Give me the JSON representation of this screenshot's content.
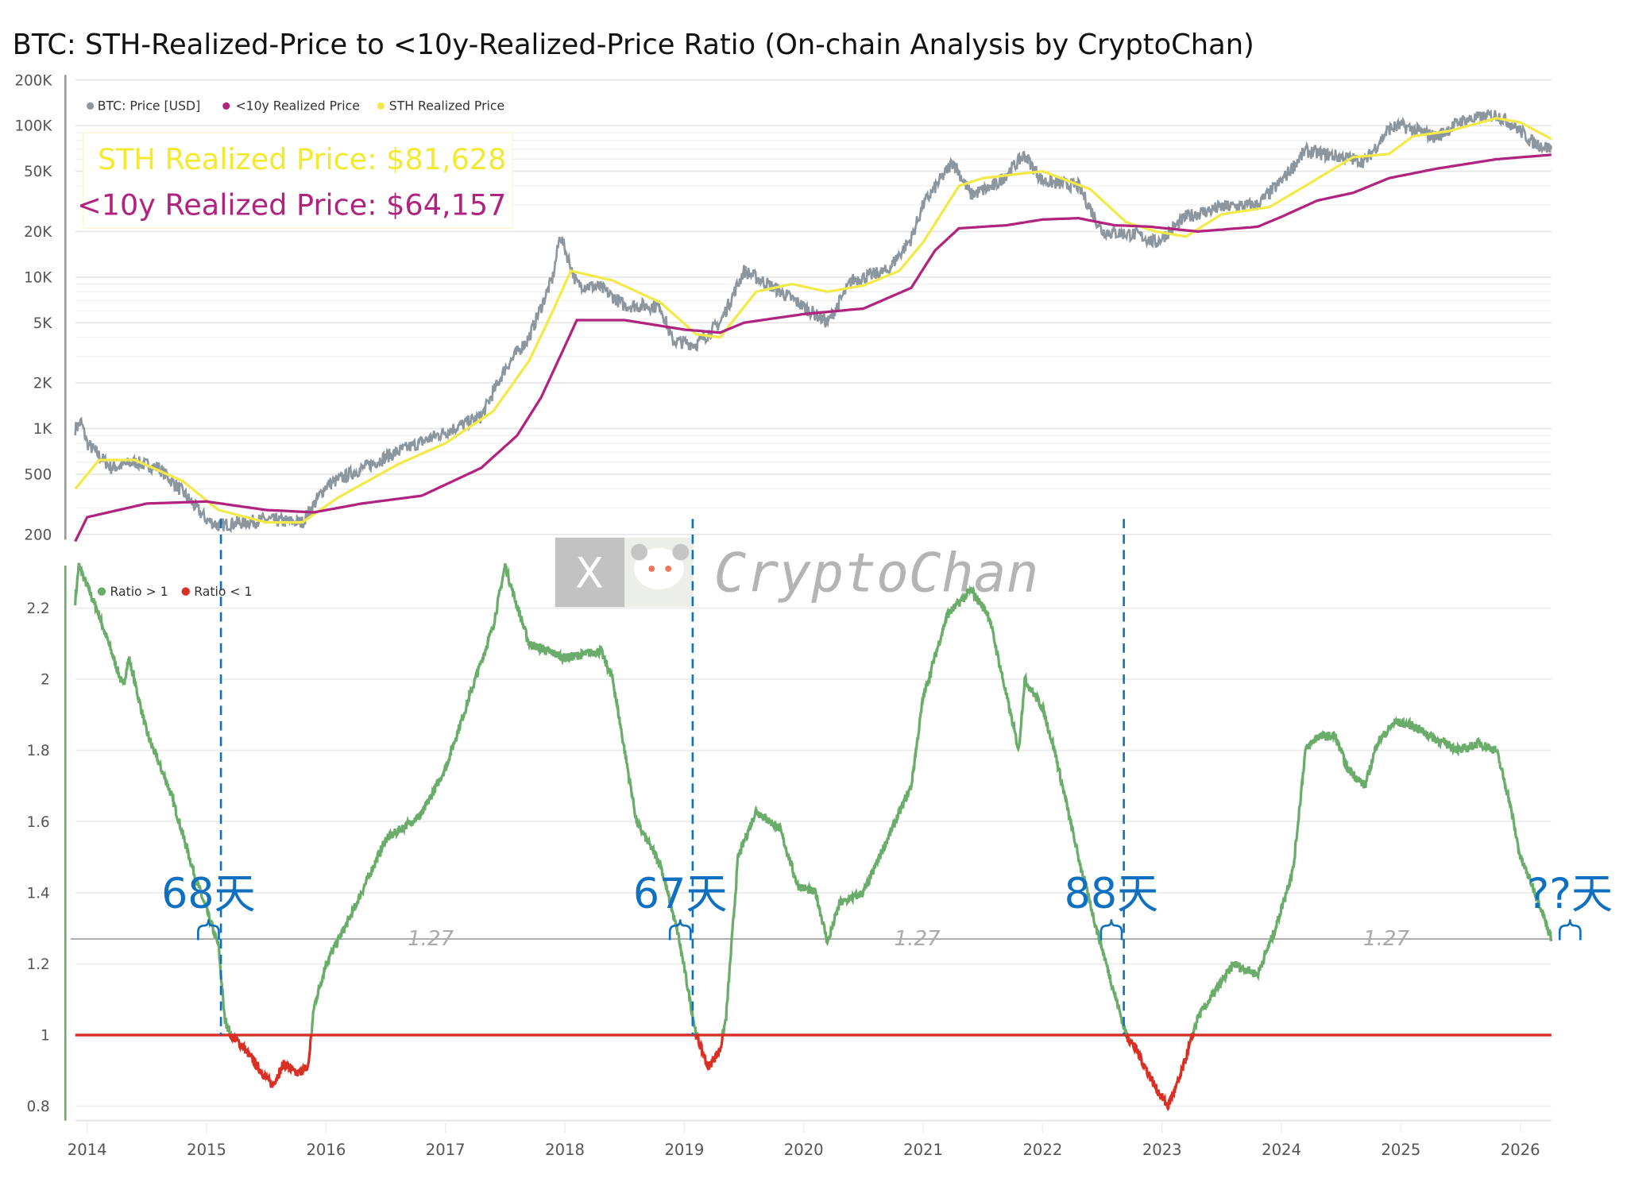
{
  "chart_data": [
    {
      "type": "line",
      "title": "BTC: STH-Realized-Price to <10y-Realized-Price Ratio (On-chain Analysis by CryptoChan)",
      "y_scale": "log",
      "ylim": [
        150,
        200000
      ],
      "y_ticks": [
        "200K",
        "100K",
        "50K",
        "20K",
        "10K",
        "5K",
        "2K",
        "1K",
        "500",
        "200"
      ],
      "y_tick_values": [
        200000,
        100000,
        50000,
        20000,
        10000,
        5000,
        2000,
        1000,
        500,
        200
      ],
      "legend": [
        "BTC: Price [USD]",
        "<10y Realized Price",
        "STH Realized Price"
      ],
      "legend_position": "top-left",
      "annotations": {
        "sth": "STH Realized Price: $81,628",
        "lt10y": "<10y Realized Price: $64,157"
      },
      "colors": {
        "price": "#8c969e",
        "lt10y": "#b0247f",
        "sth": "#f2ea4a"
      },
      "series": [
        {
          "name": "BTC: Price [USD]",
          "points": [
            [
              2013.9,
              1000
            ],
            [
              2013.95,
              1100
            ],
            [
              2014.0,
              800
            ],
            [
              2014.2,
              550
            ],
            [
              2014.4,
              600
            ],
            [
              2014.6,
              550
            ],
            [
              2014.8,
              380
            ],
            [
              2015.0,
              250
            ],
            [
              2015.1,
              230
            ],
            [
              2015.5,
              250
            ],
            [
              2015.8,
              240
            ],
            [
              2016.0,
              420
            ],
            [
              2016.5,
              650
            ],
            [
              2017.0,
              950
            ],
            [
              2017.3,
              1200
            ],
            [
              2017.5,
              2500
            ],
            [
              2017.7,
              4000
            ],
            [
              2017.9,
              10000
            ],
            [
              2017.96,
              19000
            ],
            [
              2018.1,
              9000
            ],
            [
              2018.3,
              8500
            ],
            [
              2018.5,
              6500
            ],
            [
              2018.8,
              6400
            ],
            [
              2018.9,
              3800
            ],
            [
              2019.1,
              3600
            ],
            [
              2019.3,
              5000
            ],
            [
              2019.5,
              11000
            ],
            [
              2019.7,
              9000
            ],
            [
              2019.9,
              7200
            ],
            [
              2020.2,
              5000
            ],
            [
              2020.4,
              9500
            ],
            [
              2020.7,
              11000
            ],
            [
              2020.9,
              18000
            ],
            [
              2021.0,
              30000
            ],
            [
              2021.25,
              58000
            ],
            [
              2021.4,
              35000
            ],
            [
              2021.6,
              40000
            ],
            [
              2021.85,
              64000
            ],
            [
              2022.0,
              43000
            ],
            [
              2022.3,
              40000
            ],
            [
              2022.5,
              20000
            ],
            [
              2022.8,
              19000
            ],
            [
              2022.95,
              16800
            ],
            [
              2023.2,
              25000
            ],
            [
              2023.5,
              29000
            ],
            [
              2023.8,
              30000
            ],
            [
              2024.0,
              43000
            ],
            [
              2024.2,
              68000
            ],
            [
              2024.5,
              62000
            ],
            [
              2024.7,
              58000
            ],
            [
              2024.9,
              95000
            ],
            [
              2025.0,
              100000
            ],
            [
              2025.3,
              84000
            ],
            [
              2025.5,
              107000
            ],
            [
              2025.8,
              118000
            ],
            [
              2025.95,
              100000
            ],
            [
              2026.1,
              78000
            ],
            [
              2026.26,
              70000
            ]
          ]
        },
        {
          "name": "<10y Realized Price",
          "points": [
            [
              2013.9,
              180
            ],
            [
              2014.0,
              260
            ],
            [
              2014.5,
              320
            ],
            [
              2015.0,
              330
            ],
            [
              2015.5,
              290
            ],
            [
              2015.9,
              280
            ],
            [
              2016.3,
              320
            ],
            [
              2016.8,
              360
            ],
            [
              2017.3,
              550
            ],
            [
              2017.6,
              900
            ],
            [
              2017.8,
              1600
            ],
            [
              2018.0,
              3500
            ],
            [
              2018.1,
              5200
            ],
            [
              2018.5,
              5200
            ],
            [
              2019.0,
              4500
            ],
            [
              2019.3,
              4300
            ],
            [
              2019.5,
              5000
            ],
            [
              2020.0,
              5700
            ],
            [
              2020.5,
              6200
            ],
            [
              2020.9,
              8500
            ],
            [
              2021.1,
              15000
            ],
            [
              2021.3,
              21000
            ],
            [
              2021.7,
              22000
            ],
            [
              2022.0,
              24000
            ],
            [
              2022.3,
              24500
            ],
            [
              2022.6,
              22000
            ],
            [
              2022.9,
              21500
            ],
            [
              2023.3,
              20000
            ],
            [
              2023.8,
              21500
            ],
            [
              2024.0,
              25000
            ],
            [
              2024.3,
              32000
            ],
            [
              2024.6,
              36000
            ],
            [
              2024.9,
              45000
            ],
            [
              2025.3,
              52000
            ],
            [
              2025.8,
              60000
            ],
            [
              2026.26,
              64157
            ]
          ]
        },
        {
          "name": "STH Realized Price",
          "points": [
            [
              2013.9,
              400
            ],
            [
              2014.1,
              620
            ],
            [
              2014.4,
              620
            ],
            [
              2014.8,
              450
            ],
            [
              2015.1,
              290
            ],
            [
              2015.5,
              240
            ],
            [
              2015.8,
              240
            ],
            [
              2016.1,
              350
            ],
            [
              2016.6,
              580
            ],
            [
              2017.0,
              800
            ],
            [
              2017.4,
              1300
            ],
            [
              2017.7,
              2800
            ],
            [
              2017.9,
              6000
            ],
            [
              2018.05,
              11000
            ],
            [
              2018.4,
              9500
            ],
            [
              2018.8,
              6800
            ],
            [
              2019.1,
              4200
            ],
            [
              2019.3,
              4000
            ],
            [
              2019.6,
              8000
            ],
            [
              2019.9,
              9000
            ],
            [
              2020.2,
              8000
            ],
            [
              2020.5,
              8800
            ],
            [
              2020.8,
              11000
            ],
            [
              2021.0,
              17000
            ],
            [
              2021.3,
              40000
            ],
            [
              2021.5,
              45000
            ],
            [
              2021.8,
              48000
            ],
            [
              2022.0,
              50000
            ],
            [
              2022.4,
              38000
            ],
            [
              2022.7,
              23000
            ],
            [
              2022.95,
              20000
            ],
            [
              2023.2,
              18500
            ],
            [
              2023.5,
              26000
            ],
            [
              2023.9,
              29000
            ],
            [
              2024.2,
              40000
            ],
            [
              2024.6,
              62000
            ],
            [
              2024.9,
              65000
            ],
            [
              2025.1,
              85000
            ],
            [
              2025.4,
              92000
            ],
            [
              2025.8,
              112000
            ],
            [
              2026.0,
              105000
            ],
            [
              2026.26,
              81628
            ]
          ]
        }
      ]
    },
    {
      "type": "line",
      "ylim": [
        0.75,
        2.35
      ],
      "y_ticks": [
        "2.2",
        "2",
        "1.8",
        "1.6",
        "1.4",
        "1.2",
        "1",
        "0.8"
      ],
      "y_tick_values": [
        2.2,
        2,
        1.8,
        1.6,
        1.4,
        1.2,
        1,
        0.8
      ],
      "x_ticks": [
        "2014",
        "2015",
        "2016",
        "2017",
        "2018",
        "2019",
        "2020",
        "2021",
        "2022",
        "2023",
        "2024",
        "2025",
        "2026"
      ],
      "legend": [
        "Ratio > 1",
        "Ratio < 1"
      ],
      "legend_position": "top-left",
      "colors": {
        "above": "#6aad6a",
        "below": "#d83025",
        "annotation": "#1070c0"
      },
      "reference_lines": [
        {
          "value": 1.27,
          "label": "1.27"
        },
        {
          "value": 1,
          "label": ""
        }
      ],
      "reference_label": "1.27",
      "markers": [
        {
          "year": 2015.12,
          "label": "68天"
        },
        {
          "year": 2019.07,
          "label": "67天"
        },
        {
          "year": 2022.68,
          "label": "88天"
        },
        {
          "year": 2026.26,
          "label": "??天"
        }
      ],
      "series": [
        {
          "name": "Ratio",
          "points": [
            [
              2013.9,
              2.22
            ],
            [
              2013.93,
              2.32
            ],
            [
              2014.1,
              2.18
            ],
            [
              2014.3,
              1.98
            ],
            [
              2014.35,
              2.06
            ],
            [
              2014.5,
              1.85
            ],
            [
              2014.7,
              1.68
            ],
            [
              2014.9,
              1.45
            ],
            [
              2015.1,
              1.25
            ],
            [
              2015.15,
              1.05
            ],
            [
              2015.2,
              1.0
            ],
            [
              2015.3,
              0.97
            ],
            [
              2015.45,
              0.9
            ],
            [
              2015.55,
              0.86
            ],
            [
              2015.65,
              0.92
            ],
            [
              2015.75,
              0.89
            ],
            [
              2015.85,
              0.91
            ],
            [
              2015.9,
              1.08
            ],
            [
              2016.0,
              1.2
            ],
            [
              2016.2,
              1.33
            ],
            [
              2016.5,
              1.55
            ],
            [
              2016.8,
              1.62
            ],
            [
              2017.0,
              1.75
            ],
            [
              2017.2,
              1.95
            ],
            [
              2017.4,
              2.15
            ],
            [
              2017.5,
              2.32
            ],
            [
              2017.55,
              2.26
            ],
            [
              2017.7,
              2.1
            ],
            [
              2018.0,
              2.06
            ],
            [
              2018.3,
              2.08
            ],
            [
              2018.4,
              2.0
            ],
            [
              2018.5,
              1.8
            ],
            [
              2018.6,
              1.6
            ],
            [
              2018.8,
              1.48
            ],
            [
              2018.95,
              1.28
            ],
            [
              2019.1,
              1.0
            ],
            [
              2019.2,
              0.91
            ],
            [
              2019.3,
              0.96
            ],
            [
              2019.35,
              1.05
            ],
            [
              2019.45,
              1.5
            ],
            [
              2019.6,
              1.63
            ],
            [
              2019.8,
              1.58
            ],
            [
              2019.95,
              1.42
            ],
            [
              2020.1,
              1.4
            ],
            [
              2020.2,
              1.26
            ],
            [
              2020.3,
              1.37
            ],
            [
              2020.5,
              1.4
            ],
            [
              2020.7,
              1.55
            ],
            [
              2020.9,
              1.7
            ],
            [
              2021.0,
              1.95
            ],
            [
              2021.2,
              2.18
            ],
            [
              2021.4,
              2.25
            ],
            [
              2021.55,
              2.18
            ],
            [
              2021.7,
              1.95
            ],
            [
              2021.8,
              1.8
            ],
            [
              2021.85,
              2.0
            ],
            [
              2022.0,
              1.92
            ],
            [
              2022.1,
              1.8
            ],
            [
              2022.3,
              1.5
            ],
            [
              2022.45,
              1.3
            ],
            [
              2022.6,
              1.12
            ],
            [
              2022.7,
              1.0
            ],
            [
              2022.8,
              0.95
            ],
            [
              2022.95,
              0.85
            ],
            [
              2023.05,
              0.8
            ],
            [
              2023.15,
              0.88
            ],
            [
              2023.3,
              1.05
            ],
            [
              2023.5,
              1.15
            ],
            [
              2023.6,
              1.2
            ],
            [
              2023.8,
              1.17
            ],
            [
              2023.95,
              1.3
            ],
            [
              2024.1,
              1.47
            ],
            [
              2024.2,
              1.8
            ],
            [
              2024.3,
              1.84
            ],
            [
              2024.45,
              1.84
            ],
            [
              2024.55,
              1.75
            ],
            [
              2024.7,
              1.7
            ],
            [
              2024.8,
              1.82
            ],
            [
              2024.95,
              1.88
            ],
            [
              2025.1,
              1.87
            ],
            [
              2025.3,
              1.83
            ],
            [
              2025.5,
              1.8
            ],
            [
              2025.65,
              1.82
            ],
            [
              2025.8,
              1.8
            ],
            [
              2025.9,
              1.67
            ],
            [
              2026.0,
              1.5
            ],
            [
              2026.15,
              1.38
            ],
            [
              2026.26,
              1.27
            ]
          ]
        }
      ]
    }
  ],
  "watermark": {
    "text": "CryptoChan",
    "x_logo": "X",
    "avatar": "panda-avatar"
  }
}
